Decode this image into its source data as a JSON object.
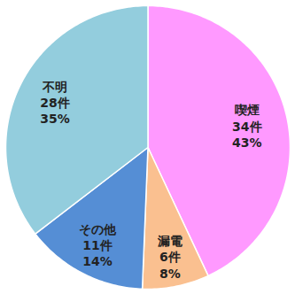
{
  "chart_data": {
    "type": "pie",
    "categories": [
      "喫煙",
      "漏電",
      "その他",
      "不明"
    ],
    "values": [
      34,
      6,
      11,
      28
    ],
    "value_labels": [
      "34件",
      "6件",
      "11件",
      "28件"
    ],
    "percents": [
      43,
      8,
      14,
      35
    ],
    "percent_labels": [
      "43%",
      "8%",
      "14%",
      "35%"
    ],
    "colors": [
      "#ff99ff",
      "#fac090",
      "#558ed5",
      "#93cddd"
    ],
    "data_labels": true
  }
}
